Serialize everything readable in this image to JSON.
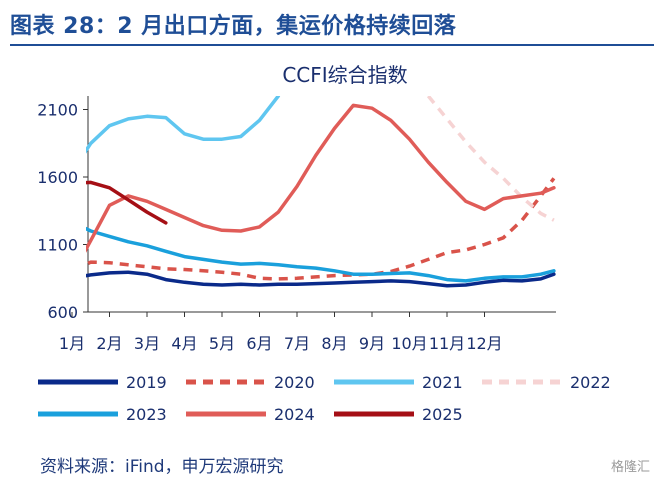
{
  "figure_title": "图表 28：2 月出口方面，集运价格持续回落",
  "source": "资料来源：iFind，申万宏源研究",
  "watermark": "格隆汇",
  "chart_data": {
    "type": "line",
    "title": "CCFI综合指数",
    "xlabel": "",
    "ylabel": "",
    "ylim": [
      600,
      2200
    ],
    "xlim": [
      0,
      12.9
    ],
    "yticks": [
      600,
      1100,
      1600,
      2100
    ],
    "xticks": [
      {
        "label": "1月",
        "x": 0
      },
      {
        "label": "2月",
        "x": 1
      },
      {
        "label": "3月",
        "x": 2
      },
      {
        "label": "4月",
        "x": 3
      },
      {
        "label": "5月",
        "x": 4
      },
      {
        "label": "6月",
        "x": 5
      },
      {
        "label": "7月",
        "x": 6
      },
      {
        "label": "8月",
        "x": 7
      },
      {
        "label": "9月",
        "x": 8
      },
      {
        "label": "10月",
        "x": 9
      },
      {
        "label": "11月",
        "x": 10
      },
      {
        "label": "12月",
        "x": 11
      }
    ],
    "grid": false,
    "legend_position": "bottom",
    "series": [
      {
        "name": "2019",
        "color": "#0a2a8a",
        "dash": "solid",
        "points": [
          [
            0.05,
            855
          ],
          [
            0.5,
            875
          ],
          [
            1,
            890
          ],
          [
            1.5,
            895
          ],
          [
            2,
            880
          ],
          [
            2.5,
            840
          ],
          [
            3,
            820
          ],
          [
            3.5,
            805
          ],
          [
            4,
            800
          ],
          [
            4.5,
            805
          ],
          [
            5,
            800
          ],
          [
            5.5,
            805
          ],
          [
            6,
            805
          ],
          [
            6.5,
            810
          ],
          [
            7,
            815
          ],
          [
            7.5,
            820
          ],
          [
            8,
            825
          ],
          [
            8.5,
            830
          ],
          [
            9,
            825
          ],
          [
            9.5,
            810
          ],
          [
            10,
            795
          ],
          [
            10.5,
            800
          ],
          [
            11,
            820
          ],
          [
            11.5,
            835
          ],
          [
            12,
            830
          ],
          [
            12.5,
            845
          ],
          [
            12.85,
            880
          ]
        ]
      },
      {
        "name": "2020",
        "color": "#d9534a",
        "dash": "dashed",
        "points": [
          [
            0.05,
            905
          ],
          [
            0.5,
            970
          ],
          [
            1,
            965
          ],
          [
            1.5,
            950
          ],
          [
            2,
            935
          ],
          [
            2.5,
            920
          ],
          [
            3,
            915
          ],
          [
            3.5,
            905
          ],
          [
            4,
            895
          ],
          [
            4.5,
            880
          ],
          [
            5,
            850
          ],
          [
            5.5,
            845
          ],
          [
            6,
            850
          ],
          [
            6.5,
            860
          ],
          [
            7,
            870
          ],
          [
            7.5,
            875
          ],
          [
            8,
            880
          ],
          [
            8.5,
            900
          ],
          [
            9,
            940
          ],
          [
            9.5,
            990
          ],
          [
            10,
            1040
          ],
          [
            10.5,
            1060
          ],
          [
            11,
            1100
          ],
          [
            11.5,
            1150
          ],
          [
            12,
            1280
          ],
          [
            12.5,
            1460
          ],
          [
            12.85,
            1590
          ]
        ]
      },
      {
        "name": "2021",
        "color": "#5fc6f0",
        "dash": "solid",
        "points": [
          [
            0.05,
            1660
          ],
          [
            0.5,
            1850
          ],
          [
            1,
            1980
          ],
          [
            1.5,
            2030
          ],
          [
            2,
            2050
          ],
          [
            2.5,
            2040
          ],
          [
            3,
            1920
          ],
          [
            3.5,
            1880
          ],
          [
            4,
            1880
          ],
          [
            4.5,
            1900
          ],
          [
            5,
            2020
          ],
          [
            5.5,
            2200
          ]
        ]
      },
      {
        "name": "2022",
        "color": "#f6d3d3",
        "dash": "dashed",
        "points": [
          [
            9.5,
            2200
          ],
          [
            10,
            2030
          ],
          [
            10.5,
            1860
          ],
          [
            11,
            1710
          ],
          [
            11.5,
            1590
          ],
          [
            12,
            1450
          ],
          [
            12.5,
            1330
          ],
          [
            12.85,
            1280
          ]
        ]
      },
      {
        "name": "2023",
        "color": "#1aa0dc",
        "dash": "solid",
        "points": [
          [
            0.05,
            1260
          ],
          [
            0.5,
            1200
          ],
          [
            1,
            1160
          ],
          [
            1.5,
            1120
          ],
          [
            2,
            1090
          ],
          [
            2.5,
            1050
          ],
          [
            3,
            1010
          ],
          [
            3.5,
            990
          ],
          [
            4,
            970
          ],
          [
            4.5,
            955
          ],
          [
            5,
            960
          ],
          [
            5.5,
            950
          ],
          [
            6,
            935
          ],
          [
            6.5,
            925
          ],
          [
            7,
            905
          ],
          [
            7.5,
            880
          ],
          [
            8,
            880
          ],
          [
            8.5,
            885
          ],
          [
            9,
            890
          ],
          [
            9.5,
            870
          ],
          [
            10,
            840
          ],
          [
            10.5,
            830
          ],
          [
            11,
            850
          ],
          [
            11.5,
            860
          ],
          [
            12,
            860
          ],
          [
            12.5,
            880
          ],
          [
            12.85,
            905
          ]
        ]
      },
      {
        "name": "2024",
        "color": "#e05c58",
        "dash": "solid",
        "points": [
          [
            0.05,
            900
          ],
          [
            0.5,
            1130
          ],
          [
            1,
            1390
          ],
          [
            1.5,
            1460
          ],
          [
            2,
            1420
          ],
          [
            2.5,
            1360
          ],
          [
            3,
            1300
          ],
          [
            3.5,
            1240
          ],
          [
            4,
            1205
          ],
          [
            4.5,
            1200
          ],
          [
            5,
            1230
          ],
          [
            5.5,
            1340
          ],
          [
            6,
            1530
          ],
          [
            6.5,
            1760
          ],
          [
            7,
            1960
          ],
          [
            7.5,
            2130
          ],
          [
            8,
            2110
          ],
          [
            8.5,
            2020
          ],
          [
            9,
            1880
          ],
          [
            9.5,
            1710
          ],
          [
            10,
            1560
          ],
          [
            10.5,
            1420
          ],
          [
            11,
            1360
          ],
          [
            11.5,
            1440
          ],
          [
            12,
            1460
          ],
          [
            12.5,
            1480
          ],
          [
            12.85,
            1520
          ]
        ]
      },
      {
        "name": "2025",
        "color": "#a50f15",
        "dash": "solid",
        "points": [
          [
            0.05,
            1555
          ],
          [
            0.5,
            1560
          ],
          [
            1,
            1520
          ],
          [
            1.5,
            1430
          ],
          [
            2,
            1340
          ],
          [
            2.5,
            1260
          ]
        ]
      }
    ]
  }
}
